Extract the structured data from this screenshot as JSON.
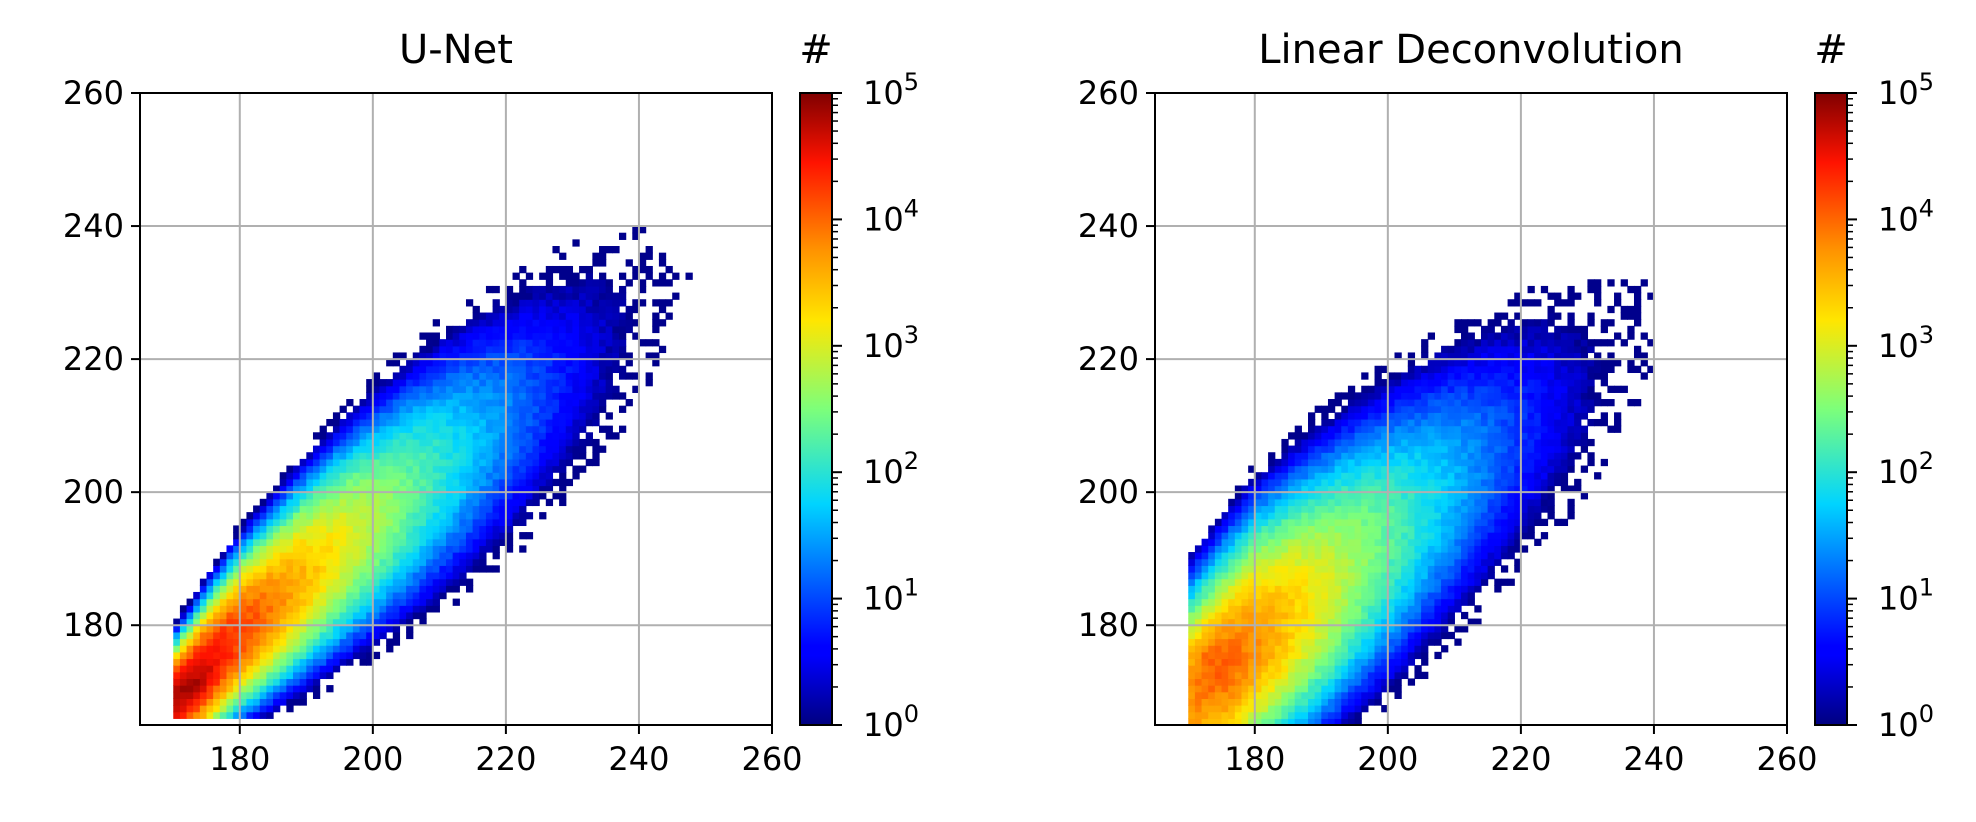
{
  "chart_data": [
    {
      "type": "heatmap",
      "title": "U-Net",
      "colorbar_label": "#",
      "x_ticks": [
        180,
        200,
        220,
        240,
        260
      ],
      "y_ticks": [
        180,
        200,
        220,
        240,
        260
      ],
      "xlim": [
        165,
        260
      ],
      "ylim": [
        165,
        260
      ],
      "color_scale": "log",
      "colorbar_range": [
        1,
        100000
      ],
      "colorbar_ticks": [
        1,
        10,
        100,
        1000,
        10000,
        100000
      ],
      "colormap": "jet",
      "grid": true,
      "distribution": {
        "peak_xy": [
          171,
          171
        ],
        "peak_count": 80000,
        "ridge": [
          [
            170,
            168
          ],
          [
            180,
            180
          ],
          [
            195,
            194
          ],
          [
            210,
            207
          ],
          [
            230,
            224
          ],
          [
            260,
            250
          ]
        ],
        "spread_perpendicular": [
          3,
          10,
          16
        ],
        "min_x": 170,
        "min_y": 166
      }
    },
    {
      "type": "heatmap",
      "title": "Linear Deconvolution",
      "colorbar_label": "#",
      "x_ticks": [
        180,
        200,
        220,
        240,
        260
      ],
      "y_ticks": [
        180,
        200,
        220,
        240,
        260
      ],
      "xlim": [
        165,
        260
      ],
      "ylim": [
        165,
        260
      ],
      "color_scale": "log",
      "colorbar_range": [
        1,
        100000
      ],
      "colorbar_ticks": [
        1,
        10,
        100,
        1000,
        10000,
        100000
      ],
      "colormap": "jet",
      "grid": true,
      "distribution": {
        "peak_xy": [
          173,
          175
        ],
        "peak_count": 15000,
        "ridge": [
          [
            170,
            165
          ],
          [
            180,
            179
          ],
          [
            195,
            193
          ],
          [
            210,
            206
          ],
          [
            230,
            223
          ],
          [
            260,
            250
          ]
        ],
        "spread_perpendicular": [
          9,
          12,
          16
        ],
        "min_x": 170,
        "min_y": 165
      }
    }
  ]
}
